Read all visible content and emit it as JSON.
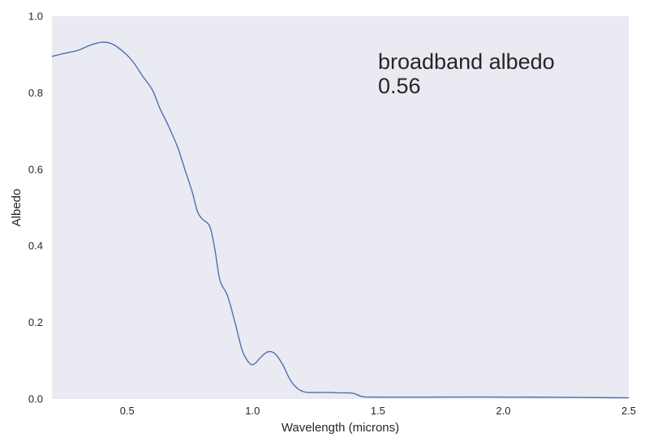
{
  "chart_data": {
    "type": "line",
    "xlabel": "Wavelength (microns)",
    "ylabel": "Albedo",
    "xlim": [
      0.2,
      2.5
    ],
    "ylim": [
      0.0,
      1.0
    ],
    "xticks": [
      0.5,
      1.0,
      1.5,
      2.0,
      2.5
    ],
    "xtick_labels": [
      "0.5",
      "1.0",
      "1.5",
      "2.0",
      "2.5"
    ],
    "yticks": [
      0.0,
      0.2,
      0.4,
      0.6,
      0.8,
      1.0
    ],
    "ytick_labels": [
      "0.0",
      "0.2",
      "0.4",
      "0.6",
      "0.8",
      "1.0"
    ],
    "grid": false,
    "colors": {
      "background": "#eaeaf2",
      "line": "#4c72b0"
    },
    "annotation": {
      "line1": "broadband albedo",
      "line2": "0.56"
    },
    "series": [
      {
        "x": [
          0.2,
          0.25,
          0.3,
          0.33,
          0.36,
          0.4,
          0.43,
          0.46,
          0.5,
          0.53,
          0.56,
          0.6,
          0.63,
          0.66,
          0.7,
          0.73,
          0.76,
          0.78,
          0.8,
          0.83,
          0.85,
          0.87,
          0.9,
          0.93,
          0.96,
          0.99,
          1.01,
          1.03,
          1.06,
          1.09,
          1.12,
          1.15,
          1.18,
          1.21,
          1.25,
          1.3,
          1.35,
          1.4,
          1.44,
          1.5,
          1.7,
          2.0,
          2.3,
          2.5
        ],
        "y": [
          0.895,
          0.903,
          0.91,
          0.918,
          0.926,
          0.932,
          0.93,
          0.92,
          0.898,
          0.875,
          0.845,
          0.808,
          0.76,
          0.72,
          0.66,
          0.6,
          0.54,
          0.49,
          0.47,
          0.45,
          0.39,
          0.31,
          0.27,
          0.2,
          0.125,
          0.092,
          0.093,
          0.107,
          0.123,
          0.118,
          0.09,
          0.05,
          0.027,
          0.018,
          0.017,
          0.017,
          0.016,
          0.015,
          0.006,
          0.005,
          0.005,
          0.005,
          0.004,
          0.003
        ]
      }
    ]
  }
}
